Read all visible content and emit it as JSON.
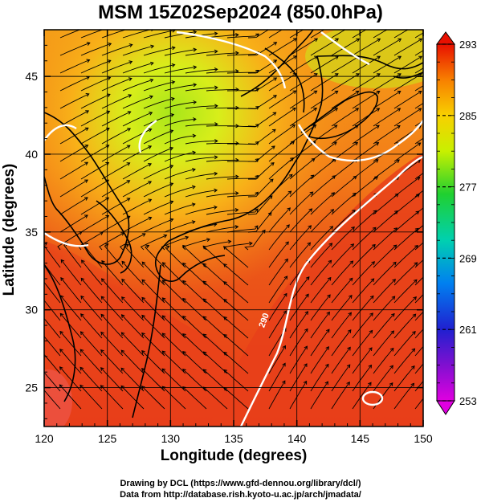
{
  "title": "MSM 15Z02Sep2024 (850.0hPa)",
  "x_axis": {
    "label": "Longitude (degrees)",
    "range": [
      120,
      150
    ],
    "ticks": [
      120,
      125,
      130,
      135,
      140,
      145,
      150
    ]
  },
  "y_axis": {
    "label": "Latitude  (degrees)",
    "range": [
      22.5,
      48
    ],
    "ticks": [
      25,
      30,
      35,
      40,
      45
    ]
  },
  "colorbar": {
    "range": [
      253,
      293
    ],
    "labels": [
      253,
      261,
      269,
      277,
      285,
      293
    ],
    "colors": [
      "#e000e0",
      "#2020d0",
      "#00a0f0",
      "#00d080",
      "#30e030",
      "#c8f000",
      "#f8e000",
      "#f8a000",
      "#f06000",
      "#e81000"
    ]
  },
  "contours": [
    {
      "label": "290"
    },
    {
      "label": "290"
    }
  ],
  "credits": {
    "line1": "Drawing by DCL (https://www.gfd-dennou.org/library/dcl/)",
    "line2": "Data from http://database.rish.kyoto-u.ac.jp/arch/jmadata/"
  },
  "colors": {
    "field_warm": "#e83a1a",
    "field_mid": "#f58a1a",
    "field_cool": "#c8ec1a",
    "contour": "#ffffff",
    "streamline": "#000000"
  }
}
